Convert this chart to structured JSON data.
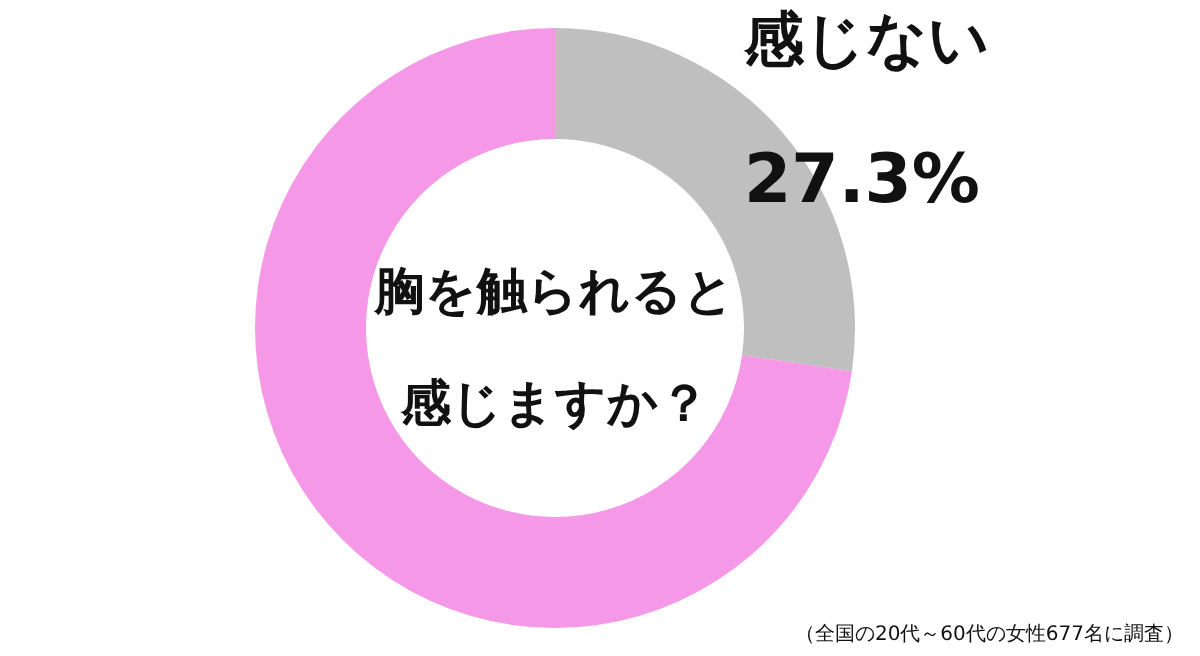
{
  "chart_data": {
    "type": "donut",
    "title": "胸を触られると感じますか？",
    "categories": [
      "感じない",
      null
    ],
    "values": [
      27.3,
      72.7
    ],
    "colors": [
      "#bfbfbf",
      "#f598e8"
    ],
    "value_labels": [
      "27.3%",
      null
    ],
    "legend": false,
    "annotations": [
      "（全国の20代～60代の女性677名に調査）"
    ]
  }
}
